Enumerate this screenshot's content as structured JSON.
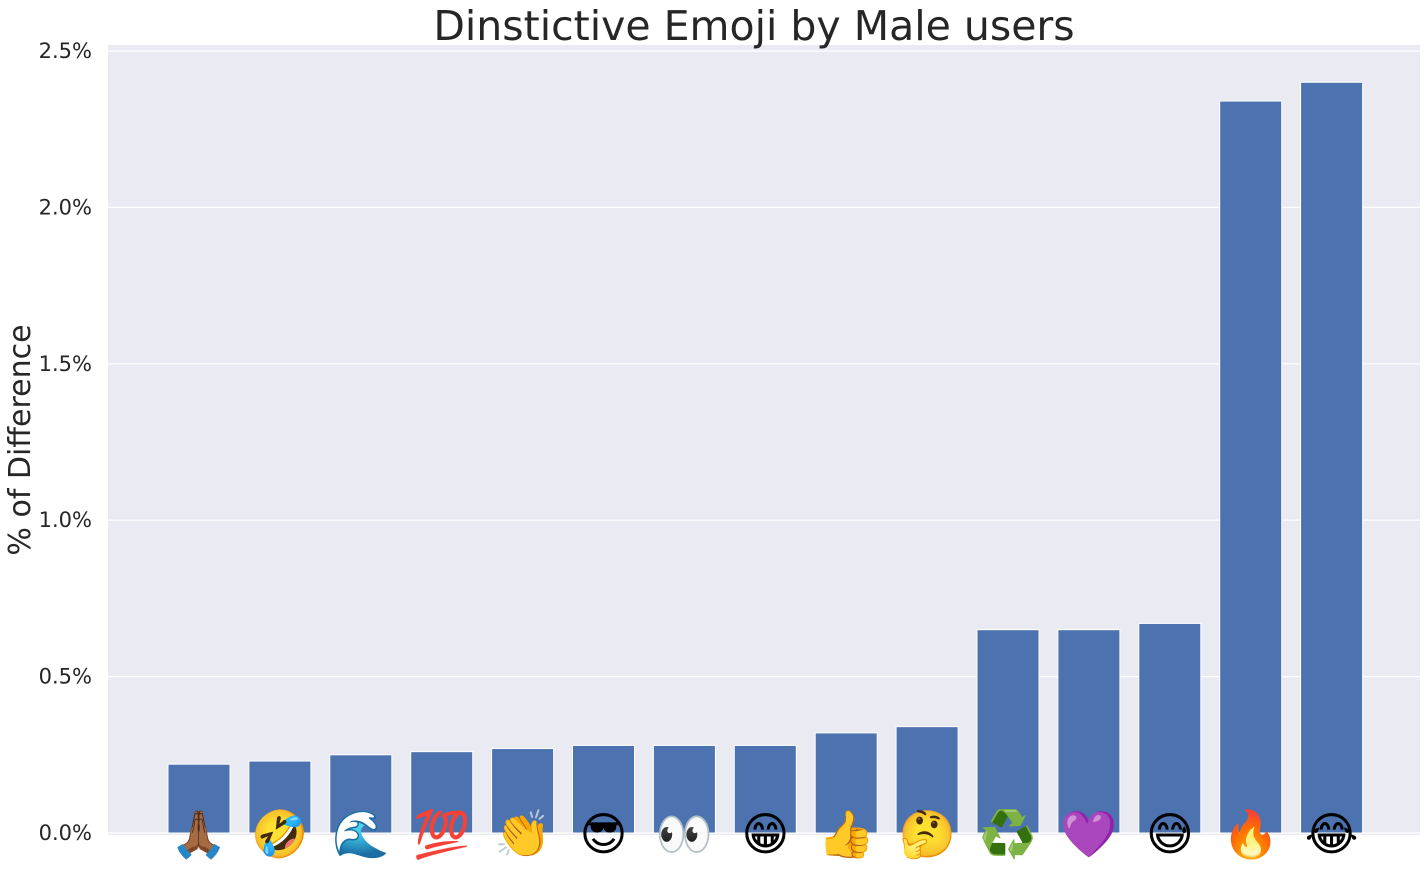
{
  "chart_data": {
    "type": "bar",
    "title": "Dinstictive Emoji by Male users",
    "ylabel": "% of Difference",
    "xlabel": "",
    "categories": [
      "🙏🏾",
      "🤣",
      "🌊",
      "💯",
      "👏",
      "😎",
      "👀",
      "😁",
      "👍",
      "🤔",
      "♻️",
      "💜",
      "😅",
      "🔥",
      "😂"
    ],
    "values": [
      0.22,
      0.23,
      0.25,
      0.26,
      0.27,
      0.28,
      0.28,
      0.28,
      0.32,
      0.34,
      0.65,
      0.65,
      0.67,
      2.34,
      2.4
    ],
    "value_unit": "%",
    "ylim": [
      0,
      2.5
    ],
    "yticks": [
      0,
      0.5,
      1.0,
      1.5,
      2.0,
      2.5
    ],
    "ytick_labels": [
      "0.0%",
      "0.5%",
      "1.0%",
      "1.5%",
      "2.0%",
      "2.5%"
    ],
    "grid": true,
    "colors": {
      "bar": "#4c72b0",
      "background": "#eaeaf2",
      "grid": "#ffffff",
      "text": "#262626"
    }
  }
}
